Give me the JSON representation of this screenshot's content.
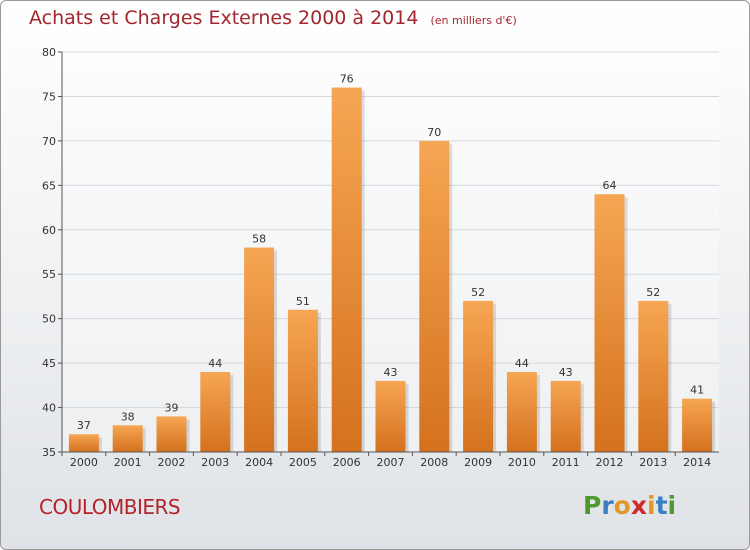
{
  "header": {
    "title": "Achats et Charges Externes 2000 à 2014",
    "subtitle": "(en milliers d'€)"
  },
  "footer": {
    "commune": "COULOMBIERS",
    "logo_text": "Proxiti"
  },
  "colors": {
    "title": "#a3262d",
    "bar_top": "#f6a653",
    "bar_bottom": "#d4711d",
    "grid": "#d5d8db",
    "logo": [
      "#4e9a2e",
      "#3a7fc1",
      "#e2972c",
      "#d12a2a",
      "#e2972c",
      "#3a7fc1",
      "#4e9a2e"
    ]
  },
  "chart_data": {
    "type": "bar",
    "categories": [
      "2000",
      "2001",
      "2002",
      "2003",
      "2004",
      "2005",
      "2006",
      "2007",
      "2008",
      "2009",
      "2010",
      "2011",
      "2012",
      "2013",
      "2014"
    ],
    "values": [
      37,
      38,
      39,
      44,
      58,
      51,
      76,
      43,
      70,
      52,
      44,
      43,
      64,
      52,
      41
    ],
    "title": "Achats et Charges Externes 2000 à 2014",
    "xlabel": "",
    "ylabel": "",
    "ylim": [
      35,
      80
    ],
    "yticks": [
      35,
      40,
      45,
      50,
      55,
      60,
      65,
      70,
      75,
      80
    ],
    "grid": true,
    "data_labels": true
  }
}
